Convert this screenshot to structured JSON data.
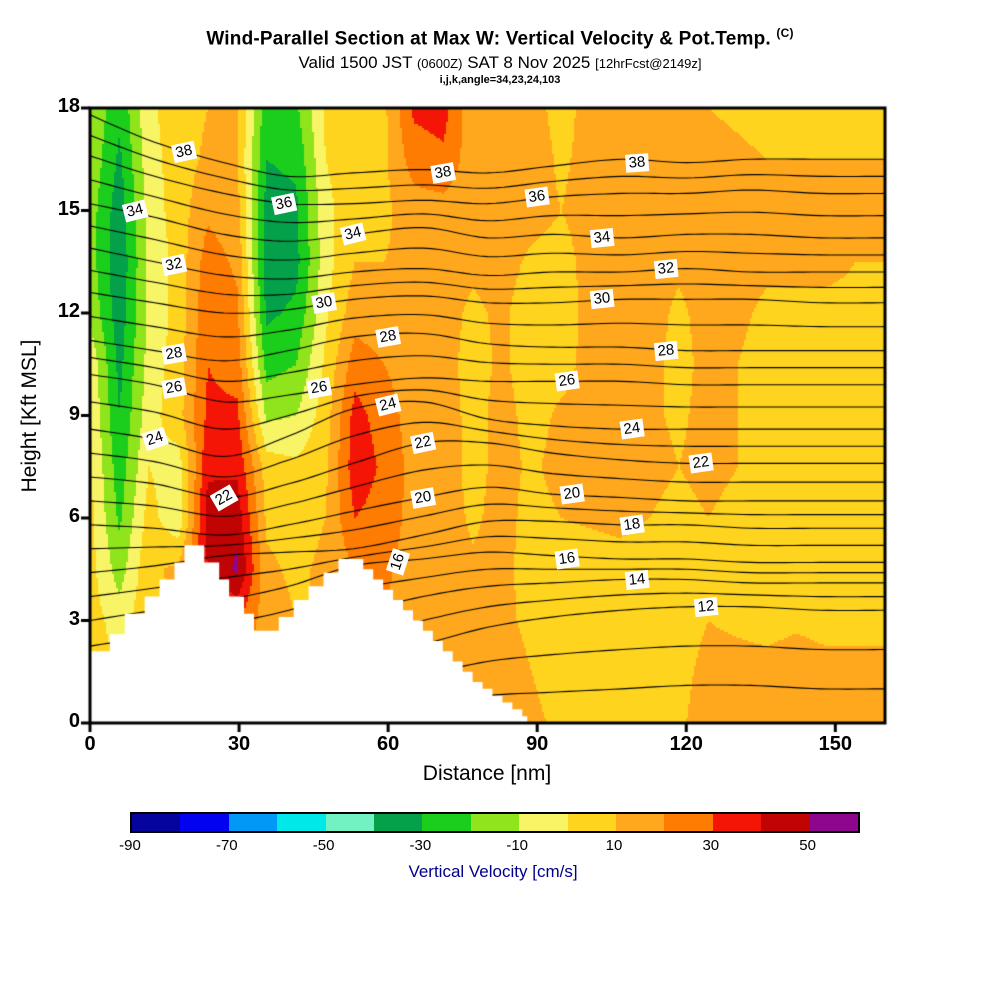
{
  "header": {
    "title": "Wind-Parallel Section at Max W: Vertical Velocity & Pot.Temp.",
    "title_unit": "(C)",
    "valid_prefix": "Valid 1500 JST",
    "valid_utc": "(0600Z)",
    "valid_date": "SAT 8 Nov 2025",
    "forecast_tag": "[12hrFcst@2149z]",
    "grid_info": "i,j,k,angle=34,23,24,103"
  },
  "chart_data": {
    "type": "heatmap",
    "subtype": "filled-contour-vertical-cross-section",
    "title": "Wind-Parallel Section at Max W: Vertical Velocity & Pot.Temp. (C)",
    "subtitle": "Valid 1500 JST (0600Z) SAT 8 Nov 2025 [12hrFcst@2149z]",
    "xlabel": "Distance [nm]",
    "ylabel": "Height [Kft MSL]",
    "xlim": [
      0,
      160
    ],
    "ylim": [
      0,
      18
    ],
    "xticks": [
      0,
      30,
      60,
      90,
      120,
      150
    ],
    "yticks": [
      0,
      3,
      6,
      9,
      12,
      15,
      18
    ],
    "vertical_velocity": {
      "units": "cm/s",
      "x_range": [
        0,
        160
      ],
      "z_range": [
        0,
        18
      ],
      "order": "rows bottom-to-top",
      "values": [
        [
          5,
          3,
          12,
          12,
          12,
          14,
          15,
          12,
          12,
          12,
          14,
          14,
          15,
          16,
          15,
          12,
          8,
          6,
          8,
          10,
          9,
          13,
          14,
          14,
          15,
          14,
          13,
          13
        ],
        [
          5,
          0,
          10,
          12,
          14,
          18,
          14,
          10,
          10,
          12,
          16,
          15,
          15,
          15,
          14,
          10,
          6,
          5,
          7,
          8,
          8,
          12,
          12,
          12,
          13,
          12,
          12,
          12
        ],
        [
          5,
          -5,
          8,
          10,
          25,
          30,
          15,
          10,
          10,
          15,
          20,
          14,
          14,
          13,
          12,
          8,
          5,
          5,
          6,
          6,
          7,
          10,
          9,
          8,
          9,
          8,
          8,
          8
        ],
        [
          4,
          -15,
          8,
          12,
          40,
          52,
          12,
          8,
          12,
          20,
          22,
          15,
          13,
          11,
          12,
          7,
          6,
          6,
          7,
          6,
          6,
          9,
          7,
          6,
          7,
          6,
          6,
          6
        ],
        [
          3,
          -22,
          4,
          -8,
          45,
          46,
          8,
          6,
          10,
          30,
          26,
          16,
          13,
          9,
          12,
          8,
          10,
          11,
          12,
          10,
          8,
          10,
          8,
          7,
          6,
          6,
          5,
          5
        ],
        [
          2,
          -26,
          0,
          -5,
          38,
          38,
          5,
          2,
          8,
          36,
          28,
          16,
          13,
          8,
          12,
          9,
          12,
          13,
          13,
          12,
          10,
          12,
          10,
          8,
          7,
          6,
          6,
          6
        ],
        [
          0,
          -30,
          -4,
          6,
          32,
          32,
          -12,
          -10,
          5,
          34,
          25,
          15,
          13,
          8,
          12,
          8,
          11,
          12,
          12,
          11,
          9,
          12,
          10,
          8,
          7,
          7,
          7,
          7
        ],
        [
          -2,
          -33,
          -6,
          5,
          30,
          26,
          -24,
          -20,
          2,
          25,
          20,
          14,
          12,
          8,
          11,
          7,
          8,
          12,
          13,
          12,
          8,
          12,
          10,
          8,
          8,
          8,
          8,
          8
        ],
        [
          -12,
          -36,
          -8,
          4,
          28,
          22,
          -32,
          -28,
          -2,
          16,
          14,
          13,
          12,
          9,
          11,
          7,
          7,
          12,
          13,
          12,
          9,
          12,
          11,
          9,
          9,
          9,
          9,
          9
        ],
        [
          -15,
          -38,
          -8,
          4,
          25,
          18,
          -36,
          -33,
          -4,
          10,
          10,
          13,
          13,
          11,
          12,
          9,
          8,
          12,
          13,
          12,
          11,
          13,
          12,
          11,
          11,
          11,
          10,
          10
        ],
        [
          -15,
          -36,
          -6,
          5,
          18,
          14,
          -34,
          -32,
          -3,
          7,
          8,
          15,
          16,
          13,
          13,
          12,
          10,
          12,
          13,
          12,
          12,
          13,
          12,
          12,
          12,
          11,
          11,
          11
        ],
        [
          -12,
          -32,
          -4,
          5,
          12,
          10,
          -30,
          -28,
          0,
          6,
          8,
          25,
          28,
          14,
          13,
          13,
          9,
          12,
          13,
          12,
          12,
          12,
          11,
          10,
          10,
          10,
          10,
          10
        ],
        [
          -10,
          -28,
          -2,
          5,
          10,
          12,
          -26,
          -22,
          2,
          6,
          8,
          32,
          34,
          13,
          12,
          12,
          8,
          12,
          13,
          11,
          10,
          10,
          9,
          8,
          8,
          9,
          9,
          9
        ]
      ]
    },
    "terrain": {
      "units": "kft",
      "steps": [
        [
          0,
          2.1
        ],
        [
          4,
          2.6
        ],
        [
          7,
          3.2
        ],
        [
          11,
          3.7
        ],
        [
          14,
          4.2
        ],
        [
          17,
          4.7
        ],
        [
          19,
          5.2
        ],
        [
          23,
          4.7
        ],
        [
          26,
          4.2
        ],
        [
          28,
          3.7
        ],
        [
          31,
          3.2
        ],
        [
          33,
          2.7
        ],
        [
          38,
          3.1
        ],
        [
          41,
          3.6
        ],
        [
          44,
          4.0
        ],
        [
          47,
          4.4
        ],
        [
          50,
          4.8
        ],
        [
          55,
          4.5
        ],
        [
          57,
          4.2
        ],
        [
          59,
          3.9
        ],
        [
          61,
          3.6
        ],
        [
          63,
          3.3
        ],
        [
          65,
          3.0
        ],
        [
          67,
          2.7
        ],
        [
          69,
          2.4
        ],
        [
          71,
          2.1
        ],
        [
          73,
          1.8
        ],
        [
          75,
          1.5
        ],
        [
          77,
          1.2
        ],
        [
          79,
          1.0
        ],
        [
          81,
          0.8
        ],
        [
          83,
          0.6
        ],
        [
          85,
          0.4
        ],
        [
          87,
          0.2
        ],
        [
          88,
          0
        ]
      ]
    },
    "isentropes": {
      "units": "C",
      "label_interval": 2,
      "draw_midlines": true,
      "x_stations": [
        0,
        13,
        27,
        40,
        53,
        67,
        80,
        93,
        107,
        120,
        133,
        147,
        160
      ],
      "lines": [
        {
          "value": 10,
          "z": [
            0.0,
            0.0,
            0.0,
            0.0,
            0.2,
            0.5,
            0.8,
            0.9,
            1.0,
            1.1,
            1.1,
            1.0,
            1.0
          ]
        },
        {
          "value": 12,
          "z": [
            0.2,
            0.5,
            0.9,
            1.3,
            1.8,
            2.3,
            2.8,
            3.1,
            3.3,
            3.4,
            3.4,
            3.3,
            3.3
          ]
        },
        {
          "value": 14,
          "z": [
            1.5,
            1.8,
            2.2,
            2.6,
            3.2,
            3.7,
            4.0,
            4.1,
            4.2,
            4.2,
            4.1,
            4.1,
            4.1
          ]
        },
        {
          "value": 16,
          "z": [
            3.0,
            3.3,
            3.6,
            4.0,
            4.6,
            4.8,
            5.0,
            4.9,
            4.8,
            4.8,
            4.7,
            4.7,
            4.7
          ]
        },
        {
          "value": 18,
          "z": [
            4.4,
            4.6,
            4.9,
            5.0,
            5.1,
            5.5,
            5.9,
            5.9,
            5.8,
            5.8,
            5.7,
            5.7,
            5.7
          ]
        },
        {
          "value": 20,
          "z": [
            5.8,
            5.7,
            5.5,
            5.8,
            6.2,
            6.6,
            6.9,
            6.7,
            6.6,
            6.5,
            6.5,
            6.5,
            6.5
          ]
        },
        {
          "value": 22,
          "z": [
            7.2,
            7.0,
            6.6,
            7.0,
            7.6,
            8.2,
            8.2,
            7.9,
            7.7,
            7.6,
            7.6,
            7.6,
            7.6
          ]
        },
        {
          "value": 24,
          "z": [
            8.6,
            8.3,
            7.8,
            8.4,
            9.2,
            9.4,
            8.9,
            8.7,
            8.6,
            8.6,
            8.6,
            8.6,
            8.6
          ]
        },
        {
          "value": 26,
          "z": [
            10.2,
            9.9,
            9.4,
            9.6,
            9.9,
            10.1,
            10.0,
            10.0,
            10.0,
            9.9,
            9.9,
            9.9,
            9.9
          ]
        },
        {
          "value": 28,
          "z": [
            11.2,
            10.9,
            10.6,
            10.9,
            11.3,
            11.4,
            11.1,
            11.0,
            11.0,
            10.9,
            10.9,
            10.9,
            10.9
          ]
        },
        {
          "value": 30,
          "z": [
            12.6,
            12.3,
            12.0,
            12.1,
            12.4,
            12.5,
            12.3,
            12.3,
            12.4,
            12.4,
            12.4,
            12.3,
            12.3
          ]
        },
        {
          "value": 32,
          "z": [
            13.9,
            13.5,
            13.1,
            13.0,
            13.2,
            13.3,
            13.1,
            13.2,
            13.2,
            13.3,
            13.2,
            13.2,
            13.2
          ]
        },
        {
          "value": 34,
          "z": [
            15.2,
            14.8,
            14.3,
            14.1,
            14.3,
            14.5,
            14.2,
            14.3,
            14.2,
            14.3,
            14.3,
            14.2,
            14.2
          ]
        },
        {
          "value": 36,
          "z": [
            16.6,
            16.0,
            15.5,
            15.2,
            15.2,
            15.3,
            15.2,
            15.4,
            15.5,
            15.5,
            15.6,
            15.5,
            15.5
          ]
        },
        {
          "value": 38,
          "z": [
            17.8,
            17.0,
            16.4,
            16.0,
            16.1,
            16.2,
            16.1,
            16.3,
            16.5,
            16.4,
            16.5,
            16.5,
            16.5
          ]
        }
      ],
      "labels": [
        {
          "v": 34,
          "x": 9,
          "z": 15.0,
          "rot": -14
        },
        {
          "v": 38,
          "x": 19,
          "z": 16.7,
          "rot": -12
        },
        {
          "v": 32,
          "x": 17,
          "z": 13.4,
          "rot": -12
        },
        {
          "v": 28,
          "x": 17,
          "z": 10.8,
          "rot": -10
        },
        {
          "v": 26,
          "x": 17,
          "z": 9.8,
          "rot": -10
        },
        {
          "v": 24,
          "x": 13,
          "z": 8.3,
          "rot": -18
        },
        {
          "v": 22,
          "x": 27,
          "z": 6.6,
          "rot": -30
        },
        {
          "v": 36,
          "x": 39,
          "z": 15.2,
          "rot": -12
        },
        {
          "v": 34,
          "x": 53,
          "z": 14.3,
          "rot": -14
        },
        {
          "v": 30,
          "x": 47,
          "z": 12.3,
          "rot": -10
        },
        {
          "v": 28,
          "x": 60,
          "z": 11.3,
          "rot": -10
        },
        {
          "v": 26,
          "x": 46,
          "z": 9.8,
          "rot": -10
        },
        {
          "v": 24,
          "x": 60,
          "z": 9.3,
          "rot": -14
        },
        {
          "v": 22,
          "x": 67,
          "z": 8.2,
          "rot": -12
        },
        {
          "v": 20,
          "x": 67,
          "z": 6.6,
          "rot": -10
        },
        {
          "v": 16,
          "x": 62,
          "z": 4.7,
          "rot": -72
        },
        {
          "v": 38,
          "x": 71,
          "z": 16.1,
          "rot": -10
        },
        {
          "v": 36,
          "x": 90,
          "z": 15.4,
          "rot": -8
        },
        {
          "v": 38,
          "x": 110,
          "z": 16.4,
          "rot": -4
        },
        {
          "v": 34,
          "x": 103,
          "z": 14.2,
          "rot": -6
        },
        {
          "v": 32,
          "x": 116,
          "z": 13.3,
          "rot": -6
        },
        {
          "v": 30,
          "x": 103,
          "z": 12.4,
          "rot": -6
        },
        {
          "v": 28,
          "x": 116,
          "z": 10.9,
          "rot": -6
        },
        {
          "v": 26,
          "x": 96,
          "z": 10.0,
          "rot": -8
        },
        {
          "v": 24,
          "x": 109,
          "z": 8.6,
          "rot": -8
        },
        {
          "v": 22,
          "x": 123,
          "z": 7.6,
          "rot": -8
        },
        {
          "v": 20,
          "x": 97,
          "z": 6.7,
          "rot": -8
        },
        {
          "v": 18,
          "x": 109,
          "z": 5.8,
          "rot": -8
        },
        {
          "v": 16,
          "x": 96,
          "z": 4.8,
          "rot": -8
        },
        {
          "v": 14,
          "x": 110,
          "z": 4.2,
          "rot": -6
        },
        {
          "v": 12,
          "x": 124,
          "z": 3.4,
          "rot": -6
        }
      ]
    },
    "colorbar": {
      "caption": "Vertical Velocity [cm/s]",
      "boundaries": [
        -90,
        -80,
        -70,
        -60,
        -50,
        -40,
        -30,
        -20,
        -10,
        0,
        10,
        20,
        30,
        40,
        50,
        60
      ],
      "colors": [
        "#05059E",
        "#0202F0",
        "#0199F5",
        "#01E8E8",
        "#72F2C3",
        "#04A04A",
        "#1CCE1C",
        "#8FE41C",
        "#F7F566",
        "#FFD41E",
        "#FFA81E",
        "#FF7C02",
        "#F51507",
        "#C00303",
        "#8E068E"
      ],
      "tick_labels": [
        -90,
        -70,
        -50,
        -30,
        -10,
        10,
        30,
        50
      ]
    }
  }
}
